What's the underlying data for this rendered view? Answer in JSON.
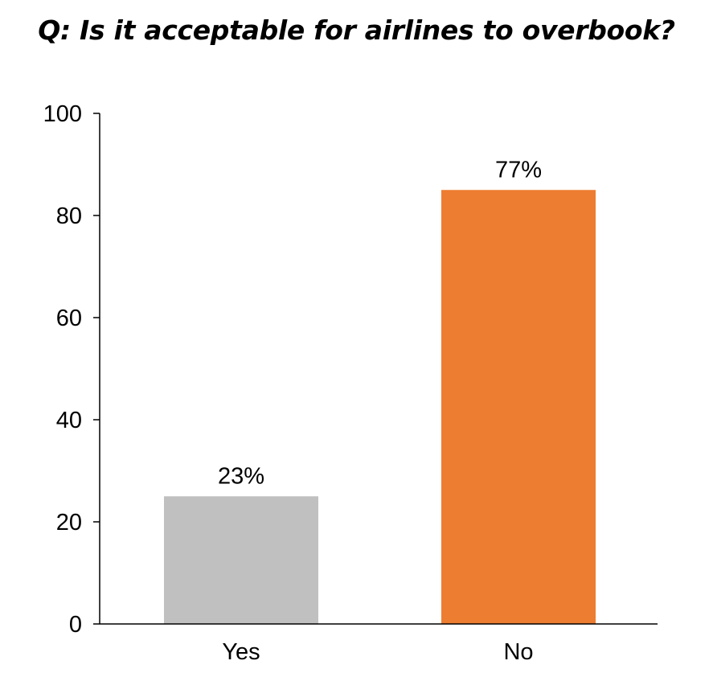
{
  "chart_data": {
    "type": "bar",
    "title": "Q: Is it acceptable for airlines to overbook?",
    "categories": [
      "Yes",
      "No"
    ],
    "values": [
      25,
      85
    ],
    "data_labels": [
      "23%",
      "77%"
    ],
    "colors": [
      "#c0c0c0",
      "#ed7d31"
    ],
    "xlabel": "",
    "ylabel": "",
    "ylim": [
      0,
      100
    ],
    "yticks": [
      0,
      20,
      40,
      60,
      80,
      100
    ],
    "grid": false,
    "legend": "none"
  }
}
